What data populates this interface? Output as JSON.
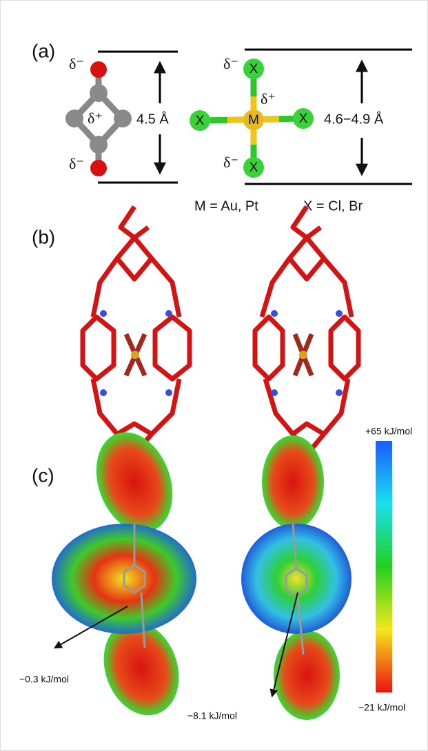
{
  "panel_a": {
    "label": "(a)",
    "left": {
      "charge_top": "δ⁻",
      "charge_center": "δ⁺",
      "charge_bottom": "δ⁻",
      "distance": "4.5 Å"
    },
    "right": {
      "charge_top": "δ⁻",
      "charge_metal": "δ⁺",
      "charge_bottom": "δ⁻",
      "metal": "M",
      "halogens": [
        "X",
        "X",
        "X",
        "X"
      ],
      "distance": "4.6−4.9 Å"
    },
    "legend": [
      "M = Au, Pt",
      "X = Cl, Br"
    ]
  },
  "panel_b": {
    "label": "(b)"
  },
  "panel_c": {
    "label": "(c)",
    "scale_max": "+65 kJ/mol",
    "scale_min": "−21  kJ/mol",
    "annotations": [
      "−0.3 kJ/mol",
      "−8.1 kJ/mol"
    ]
  }
}
